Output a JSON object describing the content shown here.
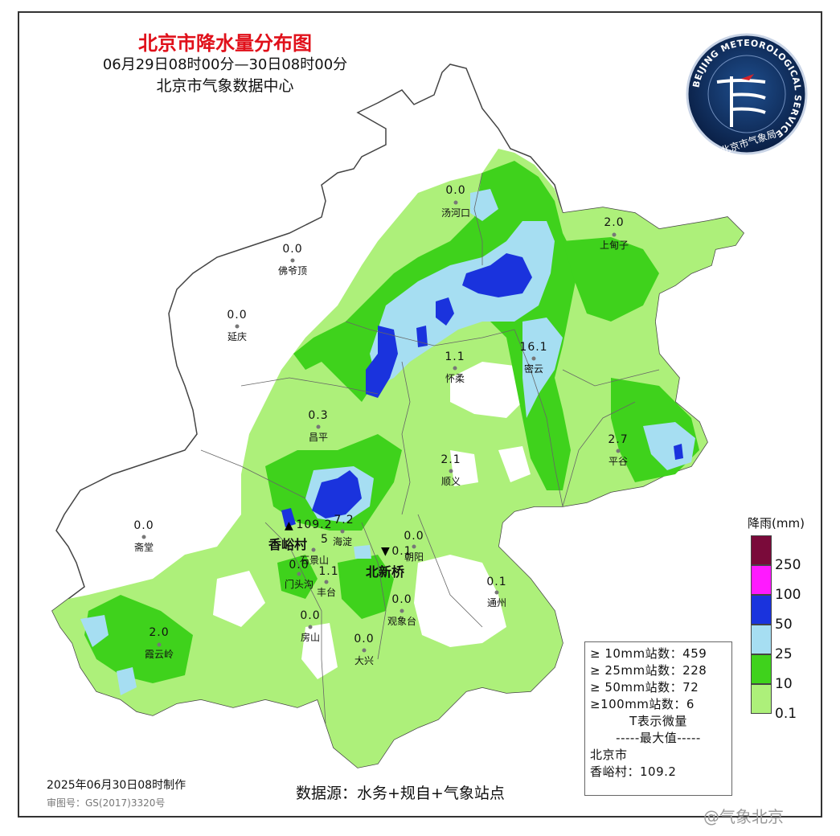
{
  "header": {
    "title": "北京市降水量分布图",
    "period": "06月29日08时00分—30日08时00分",
    "source": "北京市气象数据中心"
  },
  "logo": {
    "ring_text": "BEIJING METEOROLOGICAL SERVICE",
    "name": "北京市气象局"
  },
  "stations": [
    {
      "name": "汤河口",
      "value": "0.0"
    },
    {
      "name": "上甸子",
      "value": "2.0"
    },
    {
      "name": "佛爷顶",
      "value": "0.0"
    },
    {
      "name": "延庆",
      "value": "0.0"
    },
    {
      "name": "怀柔",
      "value": "1.1"
    },
    {
      "name": "密云",
      "value": "16.1"
    },
    {
      "name": "昌平",
      "value": "0.3"
    },
    {
      "name": "平谷",
      "value": "2.7"
    },
    {
      "name": "顺义",
      "value": "2.1"
    },
    {
      "name": "斋堂",
      "value": "0.0"
    },
    {
      "name": "海淀",
      "value": "7.2"
    },
    {
      "name": "朝阳",
      "value": "0.0"
    },
    {
      "name": "石景山",
      "value": "5"
    },
    {
      "name": "门头沟",
      "value": "0.0"
    },
    {
      "name": "丰台",
      "value": "1.1"
    },
    {
      "name": "通州",
      "value": "0.1"
    },
    {
      "name": "观象台",
      "value": "0.0"
    },
    {
      "name": "房山",
      "value": "0.0"
    },
    {
      "name": "大兴",
      "value": "0.0"
    },
    {
      "name": "霞云岭",
      "value": "2.0"
    }
  ],
  "extremes": {
    "max_station": "香峪村",
    "max_value": "109.2",
    "min_station": "北新桥",
    "min_value": "0.1"
  },
  "legend": {
    "title": "降雨(mm)",
    "levels": [
      {
        "label": "250",
        "color": "#7a0a3a"
      },
      {
        "label": "100",
        "color": "#ff1aff"
      },
      {
        "label": "50",
        "color": "#1a33dd"
      },
      {
        "label": "25",
        "color": "#a6def2"
      },
      {
        "label": "10",
        "color": "#3fd21c"
      },
      {
        "label": "0.1",
        "color": "#adf07a"
      }
    ]
  },
  "stats": {
    "rows": [
      "≥ 10mm站数：459",
      "≥ 25mm站数：228",
      "≥ 50mm站数：72",
      "≥100mm站数：6"
    ],
    "trace_note": "T表示微量",
    "max_header": "-----最大值-----",
    "region": "北京市",
    "max_line": "香峪村：109.2"
  },
  "footer": {
    "made": "2025年06月30日08时制作",
    "review": "审图号：GS(2017)3320号",
    "data_source": "数据源：水务+规自+气象站点",
    "watermark": "@气象北京"
  }
}
